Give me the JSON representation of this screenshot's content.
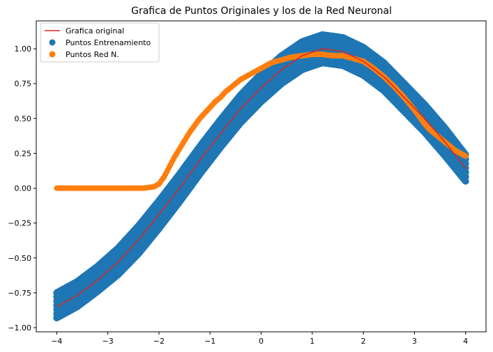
{
  "chart_data": {
    "type": "scatter",
    "title": "Grafica de Puntos Originales y los de la Red Neuronal",
    "xlabel": "",
    "ylabel": "",
    "xlim": [
      -4.4,
      4.4
    ],
    "ylim": [
      -1.03,
      1.2
    ],
    "xticks": [
      -4,
      -3,
      -2,
      -1,
      0,
      1,
      2,
      3,
      4
    ],
    "xtick_labels": [
      "−4",
      "−3",
      "−2",
      "−1",
      "0",
      "1",
      "2",
      "3",
      "4"
    ],
    "yticks": [
      -1.0,
      -0.75,
      -0.5,
      -0.25,
      0.0,
      0.25,
      0.5,
      0.75,
      1.0
    ],
    "ytick_labels": [
      "−1.00",
      "−0.75",
      "−0.50",
      "−0.25",
      "0.00",
      "0.25",
      "0.50",
      "0.75",
      "1.00"
    ],
    "grid": false,
    "legend_position": "top-left",
    "series": [
      {
        "name": "Grafica original",
        "kind": "line",
        "color": "#d62728",
        "x": [
          -4.0,
          -3.6,
          -3.2,
          -2.8,
          -2.4,
          -2.0,
          -1.6,
          -1.2,
          -0.8,
          -0.4,
          0.0,
          0.4,
          0.8,
          1.2,
          1.6,
          2.0,
          2.4,
          2.8,
          3.2,
          3.6,
          4.0
        ],
        "y": [
          -0.85,
          -0.77,
          -0.66,
          -0.53,
          -0.37,
          -0.19,
          0.0,
          0.2,
          0.39,
          0.57,
          0.72,
          0.85,
          0.95,
          1.0,
          0.98,
          0.91,
          0.8,
          0.65,
          0.5,
          0.33,
          0.14
        ]
      },
      {
        "name": "Puntos Entrenamiento",
        "kind": "scatter-band",
        "color": "#1f77b4",
        "x": [
          -4.0,
          -3.6,
          -3.2,
          -2.8,
          -2.4,
          -2.0,
          -1.6,
          -1.2,
          -0.8,
          -0.4,
          0.0,
          0.4,
          0.8,
          1.2,
          1.6,
          2.0,
          2.4,
          2.8,
          3.2,
          3.6,
          4.0
        ],
        "y_low": [
          -0.93,
          -0.85,
          -0.74,
          -0.62,
          -0.47,
          -0.29,
          -0.1,
          0.1,
          0.29,
          0.47,
          0.62,
          0.75,
          0.85,
          0.9,
          0.88,
          0.81,
          0.7,
          0.55,
          0.4,
          0.23,
          0.05
        ],
        "y_high": [
          -0.75,
          -0.67,
          -0.56,
          -0.43,
          -0.27,
          -0.09,
          0.1,
          0.3,
          0.49,
          0.67,
          0.82,
          0.95,
          1.05,
          1.1,
          1.08,
          1.01,
          0.9,
          0.75,
          0.6,
          0.43,
          0.24
        ]
      },
      {
        "name": "Puntos Red N.",
        "kind": "scatter",
        "color": "#ff7f0e",
        "x": [
          -4.0,
          -3.9,
          -3.8,
          -3.7,
          -3.6,
          -3.5,
          -3.4,
          -3.3,
          -3.2,
          -3.1,
          -3.0,
          -2.9,
          -2.7,
          -2.6,
          -2.5,
          -2.4,
          -2.3,
          -2.2,
          -2.1,
          -2.0,
          -1.9,
          -1.8,
          -1.7,
          -1.6,
          -1.5,
          -1.4,
          -1.3,
          -1.2,
          -1.1,
          -1.0,
          -0.9,
          -0.8,
          -0.7,
          -0.6,
          -0.5,
          -0.4,
          -0.2,
          0.0,
          0.2,
          0.4,
          0.6,
          0.8,
          1.0,
          1.2,
          1.4,
          1.6,
          1.8,
          2.0,
          2.2,
          2.4,
          2.6,
          2.8,
          3.0,
          3.2,
          3.3,
          3.4,
          3.5,
          3.6,
          3.7,
          3.8,
          3.9,
          4.0
        ],
        "y": [
          0.0,
          0.0,
          0.0,
          0.0,
          0.0,
          0.0,
          0.0,
          0.0,
          0.0,
          0.0,
          0.0,
          0.0,
          0.0,
          0.0,
          0.0,
          0.0,
          0.0,
          0.005,
          0.01,
          0.03,
          0.08,
          0.15,
          0.22,
          0.28,
          0.34,
          0.4,
          0.45,
          0.5,
          0.54,
          0.58,
          0.62,
          0.65,
          0.69,
          0.72,
          0.75,
          0.78,
          0.82,
          0.86,
          0.9,
          0.92,
          0.94,
          0.95,
          0.96,
          0.96,
          0.95,
          0.95,
          0.93,
          0.91,
          0.86,
          0.8,
          0.73,
          0.65,
          0.56,
          0.46,
          0.42,
          0.39,
          0.36,
          0.33,
          0.3,
          0.27,
          0.25,
          0.23
        ]
      }
    ]
  }
}
